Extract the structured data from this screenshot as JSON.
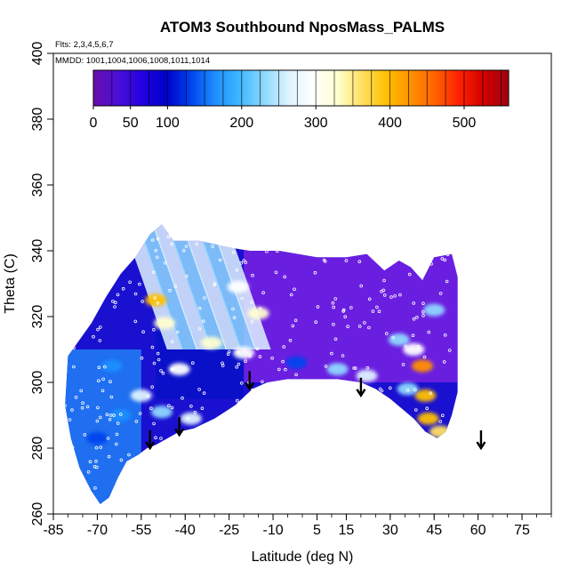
{
  "chart_data": {
    "type": "heatmap",
    "title": "ATOM3 Southbound NposMass_PALMS",
    "flights_note": "Flts: 2,3,4,5,6,7",
    "dates_note": "MMDD: 1001,1004,1006,1008,1011,1014",
    "xlabel": "Latitude (deg N)",
    "ylabel": "Theta (C)",
    "xlim": [
      -85,
      85
    ],
    "ylim": [
      260,
      400
    ],
    "x_ticks": [
      -85,
      -70,
      -55,
      -40,
      -25,
      -10,
      5,
      15,
      30,
      45,
      60,
      75
    ],
    "y_ticks": [
      260,
      280,
      300,
      320,
      340,
      360,
      380,
      400
    ],
    "colorbar": {
      "min": 0,
      "max": 560,
      "tick_values": [
        0,
        50,
        100,
        200,
        300,
        400,
        500
      ],
      "tick_labels": [
        "0",
        "50",
        "100",
        "200",
        "300",
        "400",
        "500"
      ],
      "colors": [
        "#6a0dad",
        "#4b0fd6",
        "#2200e0",
        "#0000cc",
        "#0044ee",
        "#1f8fff",
        "#3fb8ff",
        "#8fd8ff",
        "#dff3ff",
        "#ffffff",
        "#ffffd0",
        "#ffe060",
        "#ffc000",
        "#ff9000",
        "#ff6000",
        "#ff2000",
        "#d00000",
        "#a00010"
      ]
    },
    "tropopause_markers": [
      {
        "latitude": -52,
        "theta": 280
      },
      {
        "latitude": -42,
        "theta": 284
      },
      {
        "latitude": -18,
        "theta": 298
      },
      {
        "latitude": 20,
        "theta": 296
      },
      {
        "latitude": 61,
        "theta": 280
      }
    ],
    "coverage_outline": [
      [
        -80,
        308
      ],
      [
        -76,
        313
      ],
      [
        -72,
        318
      ],
      [
        -67,
        326
      ],
      [
        -62,
        333
      ],
      [
        -57,
        338
      ],
      [
        -52,
        345
      ],
      [
        -48,
        348
      ],
      [
        -44,
        343
      ],
      [
        -35,
        343
      ],
      [
        -25,
        341
      ],
      [
        -18,
        340
      ],
      [
        -8,
        340
      ],
      [
        5,
        338
      ],
      [
        15,
        338
      ],
      [
        22,
        339
      ],
      [
        28,
        334
      ],
      [
        33,
        337
      ],
      [
        37,
        335
      ],
      [
        41,
        331
      ],
      [
        45,
        338
      ],
      [
        51,
        339
      ],
      [
        53,
        332
      ],
      [
        53,
        297
      ],
      [
        51,
        290
      ],
      [
        49,
        285
      ],
      [
        46,
        283
      ],
      [
        42,
        285
      ],
      [
        38,
        289
      ],
      [
        34,
        292
      ],
      [
        30,
        295
      ],
      [
        25,
        298
      ],
      [
        20,
        300
      ],
      [
        12,
        301
      ],
      [
        5,
        301
      ],
      [
        -5,
        301
      ],
      [
        -12,
        300
      ],
      [
        -17,
        298
      ],
      [
        -23,
        293
      ],
      [
        -30,
        289
      ],
      [
        -37,
        286
      ],
      [
        -42,
        285
      ],
      [
        -46,
        283
      ],
      [
        -50,
        281
      ],
      [
        -53,
        280
      ],
      [
        -56,
        278
      ],
      [
        -60,
        276
      ],
      [
        -63,
        271
      ],
      [
        -66,
        265
      ],
      [
        -69,
        263
      ],
      [
        -72,
        267
      ],
      [
        -76,
        274
      ],
      [
        -79,
        283
      ],
      [
        -81,
        293
      ]
    ],
    "hotspots": [
      {
        "latitude": -50,
        "theta": 325,
        "value": 380
      },
      {
        "latitude": -47,
        "theta": 318,
        "value": 330
      },
      {
        "latitude": -42,
        "theta": 304,
        "value": 300
      },
      {
        "latitude": -31,
        "theta": 312,
        "value": 320
      },
      {
        "latitude": -20,
        "theta": 309,
        "value": 300
      },
      {
        "latitude": -15,
        "theta": 321,
        "value": 320
      },
      {
        "latitude": -22,
        "theta": 329,
        "value": 290
      },
      {
        "latitude": -38,
        "theta": 289,
        "value": 270
      },
      {
        "latitude": -48,
        "theta": 291,
        "value": 240
      },
      {
        "latitude": -55,
        "theta": 296,
        "value": 250
      },
      {
        "latitude": 33,
        "theta": 313,
        "value": 240
      },
      {
        "latitude": 38,
        "theta": 310,
        "value": 300
      },
      {
        "latitude": 41,
        "theta": 305,
        "value": 420
      },
      {
        "latitude": 42,
        "theta": 296,
        "value": 380
      },
      {
        "latitude": 43,
        "theta": 289,
        "value": 400
      },
      {
        "latitude": 47,
        "theta": 285,
        "value": 360
      },
      {
        "latitude": 36,
        "theta": 298,
        "value": 230
      },
      {
        "latitude": 45,
        "theta": 322,
        "value": 220
      },
      {
        "latitude": 22,
        "theta": 302,
        "value": 260
      },
      {
        "latitude": 12,
        "theta": 304,
        "value": 230
      },
      {
        "latitude": -2,
        "theta": 306,
        "value": 150
      },
      {
        "latitude": -62,
        "theta": 290,
        "value": 170
      },
      {
        "latitude": -70,
        "theta": 283,
        "value": 150
      },
      {
        "latitude": -65,
        "theta": 305,
        "value": 160
      }
    ]
  }
}
